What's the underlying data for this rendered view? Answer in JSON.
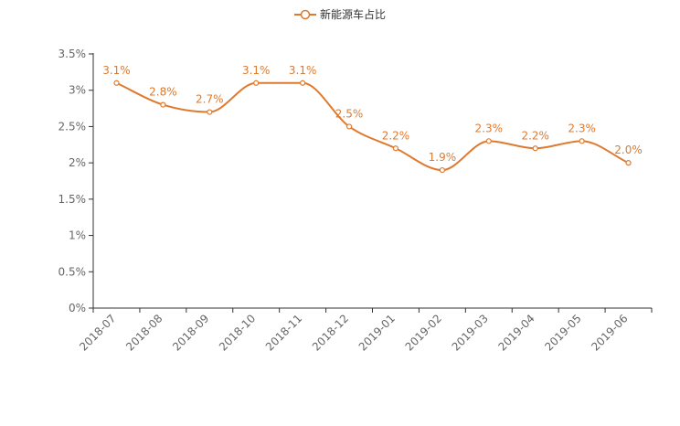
{
  "chart_data": {
    "type": "line",
    "title": "",
    "legend": [
      "新能源车占比"
    ],
    "color": "#de7a2f",
    "categories": [
      "2018-07",
      "2018-08",
      "2018-09",
      "2018-10",
      "2018-11",
      "2018-12",
      "2019-01",
      "2019-02",
      "2019-03",
      "2019-04",
      "2019-05",
      "2019-06"
    ],
    "series": [
      {
        "name": "新能源车占比",
        "values": [
          3.1,
          2.8,
          2.7,
          3.1,
          3.1,
          2.5,
          2.2,
          1.9,
          2.3,
          2.2,
          2.3,
          2.0
        ],
        "labels": [
          "3.1%",
          "2.8%",
          "2.7%",
          "3.1%",
          "3.1%",
          "2.5%",
          "2.2%",
          "1.9%",
          "2.3%",
          "2.2%",
          "2.3%",
          "2.0%"
        ]
      }
    ],
    "y_ticks": [
      0,
      0.5,
      1,
      1.5,
      2,
      2.5,
      3,
      3.5
    ],
    "y_tick_labels": [
      "0%",
      "0.5%",
      "1%",
      "1.5%",
      "2%",
      "2.5%",
      "3%",
      "3.5%"
    ],
    "ylim": [
      0,
      3.5
    ],
    "xlabel": "",
    "ylabel": "",
    "grid": false,
    "smooth": true
  }
}
